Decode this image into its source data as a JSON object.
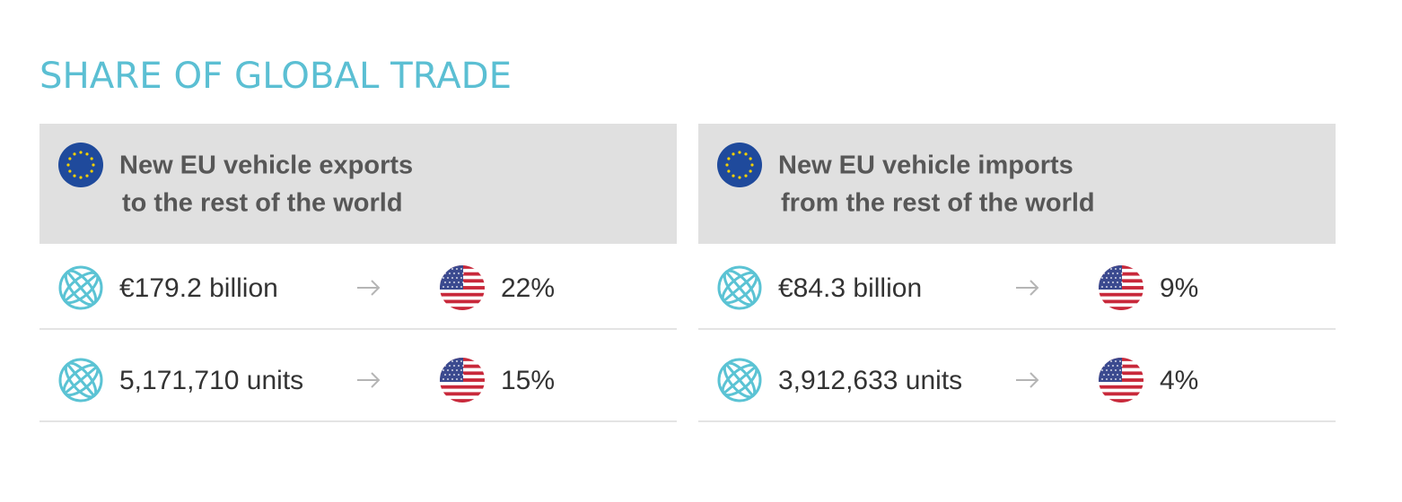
{
  "title": "SHARE OF GLOBAL TRADE",
  "panels": [
    {
      "heading": [
        "New EU vehicle exports",
        "to the rest of the world"
      ],
      "rows": [
        {
          "amount": "€179.2 billion",
          "share": "22%"
        },
        {
          "amount": "5,171,710 units",
          "share": "15%"
        }
      ]
    },
    {
      "heading": [
        "New EU vehicle imports",
        "from the rest of the world"
      ],
      "rows": [
        {
          "amount": "€84.3 billion",
          "share": "9%"
        },
        {
          "amount": "3,912,633 units",
          "share": "4%"
        }
      ]
    }
  ]
}
